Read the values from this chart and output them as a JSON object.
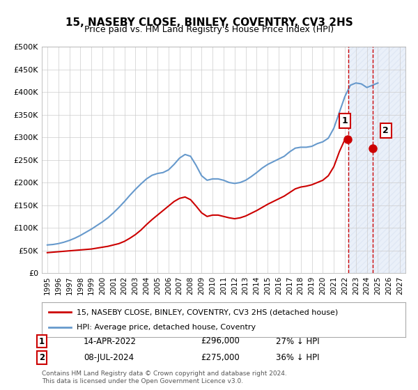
{
  "title": "15, NASEBY CLOSE, BINLEY, COVENTRY, CV3 2HS",
  "subtitle": "Price paid vs. HM Land Registry's House Price Index (HPI)",
  "legend_line1": "15, NASEBY CLOSE, BINLEY, COVENTRY, CV3 2HS (detached house)",
  "legend_line2": "HPI: Average price, detached house, Coventry",
  "footer": "Contains HM Land Registry data © Crown copyright and database right 2024.\nThis data is licensed under the Open Government Licence v3.0.",
  "sale1_label": "1",
  "sale1_date": "14-APR-2022",
  "sale1_price": "£296,000",
  "sale1_hpi": "27% ↓ HPI",
  "sale2_label": "2",
  "sale2_date": "08-JUL-2024",
  "sale2_price": "£275,000",
  "sale2_hpi": "36% ↓ HPI",
  "ylim": [
    0,
    500000
  ],
  "yticks": [
    0,
    50000,
    100000,
    150000,
    200000,
    250000,
    300000,
    350000,
    400000,
    450000,
    500000
  ],
  "ytick_labels": [
    "£0",
    "£50K",
    "£100K",
    "£150K",
    "£200K",
    "£250K",
    "£300K",
    "£350K",
    "£400K",
    "£450K",
    "£500K"
  ],
  "xlim_start": 1994.5,
  "xlim_end": 2027.5,
  "hpi_color": "#6699cc",
  "property_color": "#cc0000",
  "sale_marker_color": "#cc0000",
  "shade_color": "#ddeeff",
  "shade_start": 2022.3,
  "shade_end": 2027.5,
  "vertical_line1_x": 2022.3,
  "vertical_line2_x": 2024.5,
  "sale1_x": 2022.28,
  "sale1_y": 296000,
  "sale2_x": 2024.52,
  "sale2_y": 275000,
  "hpi_x": [
    1995,
    1995.5,
    1996,
    1996.5,
    1997,
    1997.5,
    1998,
    1998.5,
    1999,
    1999.5,
    2000,
    2000.5,
    2001,
    2001.5,
    2002,
    2002.5,
    2003,
    2003.5,
    2004,
    2004.5,
    2005,
    2005.5,
    2006,
    2006.5,
    2007,
    2007.5,
    2008,
    2008.5,
    2009,
    2009.5,
    2010,
    2010.5,
    2011,
    2011.5,
    2012,
    2012.5,
    2013,
    2013.5,
    2014,
    2014.5,
    2015,
    2015.5,
    2016,
    2016.5,
    2017,
    2017.5,
    2018,
    2018.5,
    2019,
    2019.5,
    2020,
    2020.5,
    2021,
    2021.5,
    2022,
    2022.5,
    2023,
    2023.5,
    2024,
    2024.5,
    2025
  ],
  "hpi_y": [
    62000,
    63000,
    65000,
    68000,
    72000,
    77000,
    83000,
    90000,
    97000,
    105000,
    113000,
    122000,
    133000,
    145000,
    158000,
    172000,
    185000,
    197000,
    208000,
    216000,
    220000,
    222000,
    228000,
    240000,
    254000,
    262000,
    258000,
    238000,
    215000,
    205000,
    208000,
    208000,
    205000,
    200000,
    198000,
    200000,
    205000,
    213000,
    222000,
    232000,
    240000,
    246000,
    252000,
    258000,
    268000,
    276000,
    278000,
    278000,
    280000,
    286000,
    290000,
    298000,
    320000,
    355000,
    390000,
    415000,
    420000,
    418000,
    410000,
    415000,
    420000
  ],
  "prop_x": [
    1995,
    1995.5,
    1996,
    1996.5,
    1997,
    1997.5,
    1998,
    1998.5,
    1999,
    1999.5,
    2000,
    2000.5,
    2001,
    2001.5,
    2002,
    2002.5,
    2003,
    2003.5,
    2004,
    2004.5,
    2005,
    2005.5,
    2006,
    2006.5,
    2007,
    2007.5,
    2008,
    2008.5,
    2009,
    2009.5,
    2010,
    2010.5,
    2011,
    2011.5,
    2012,
    2012.5,
    2013,
    2013.5,
    2014,
    2014.5,
    2015,
    2015.5,
    2016,
    2016.5,
    2017,
    2017.5,
    2018,
    2018.5,
    2019,
    2019.5,
    2020,
    2020.5,
    2021,
    2021.5,
    2022,
    2022.28
  ],
  "prop_y": [
    45000,
    46000,
    47000,
    48000,
    49000,
    50000,
    51000,
    52000,
    53000,
    55000,
    57000,
    59000,
    62000,
    65000,
    70000,
    77000,
    85000,
    95000,
    107000,
    118000,
    128000,
    138000,
    148000,
    158000,
    165000,
    168000,
    162000,
    148000,
    133000,
    125000,
    128000,
    128000,
    125000,
    122000,
    120000,
    122000,
    126000,
    132000,
    138000,
    145000,
    152000,
    158000,
    164000,
    170000,
    178000,
    186000,
    190000,
    192000,
    195000,
    200000,
    205000,
    215000,
    235000,
    268000,
    295000,
    296000
  ],
  "xtick_years": [
    1995,
    1996,
    1997,
    1998,
    1999,
    2000,
    2001,
    2002,
    2003,
    2004,
    2005,
    2006,
    2007,
    2008,
    2009,
    2010,
    2011,
    2012,
    2013,
    2014,
    2015,
    2016,
    2017,
    2018,
    2019,
    2020,
    2021,
    2022,
    2023,
    2024,
    2025,
    2026,
    2027
  ],
  "bg_color": "#ffffff",
  "grid_color": "#cccccc"
}
